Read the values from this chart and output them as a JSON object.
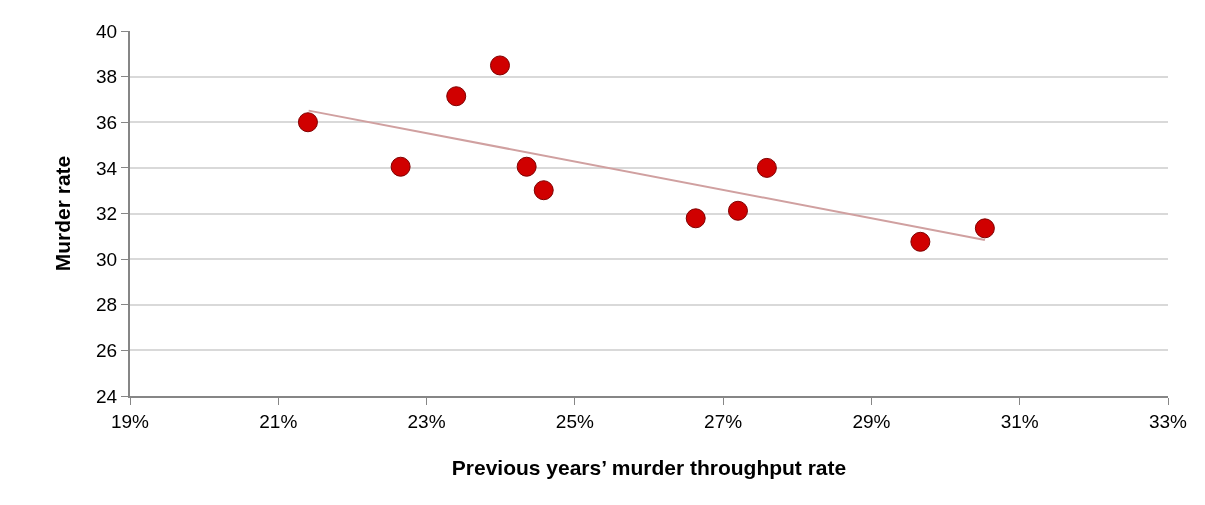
{
  "chart_data": {
    "type": "scatter",
    "xlabel": "Previous years’ murder throughput rate",
    "ylabel": "Murder rate",
    "xlim": [
      19,
      33
    ],
    "xticks": [
      {
        "value": 19,
        "label": "19%"
      },
      {
        "value": 21,
        "label": "21%"
      },
      {
        "value": 23,
        "label": "23%"
      },
      {
        "value": 25,
        "label": "25%"
      },
      {
        "value": 27,
        "label": "27%"
      },
      {
        "value": 29,
        "label": "29%"
      },
      {
        "value": 31,
        "label": "31%"
      },
      {
        "value": 33,
        "label": "33%"
      }
    ],
    "ylim": [
      24,
      40
    ],
    "yticks": [
      24,
      26,
      28,
      30,
      32,
      34,
      36,
      38,
      40
    ],
    "grid": "y",
    "series": [
      {
        "color": "#d00000",
        "marker": "circle",
        "x": [
          21.4,
          22.65,
          23.4,
          23.99,
          24.35,
          24.58,
          26.63,
          27.2,
          27.59,
          29.66,
          30.53
        ],
        "values": [
          36.0,
          34.05,
          37.14,
          38.49,
          34.05,
          33.02,
          31.79,
          32.12,
          34.0,
          30.76,
          31.35
        ]
      },
      {
        "type": "line",
        "color": "#d0a0a0",
        "line_style": "solid",
        "x": [
          21.41,
          30.53
        ],
        "values": [
          36.51,
          30.84
        ]
      }
    ]
  }
}
